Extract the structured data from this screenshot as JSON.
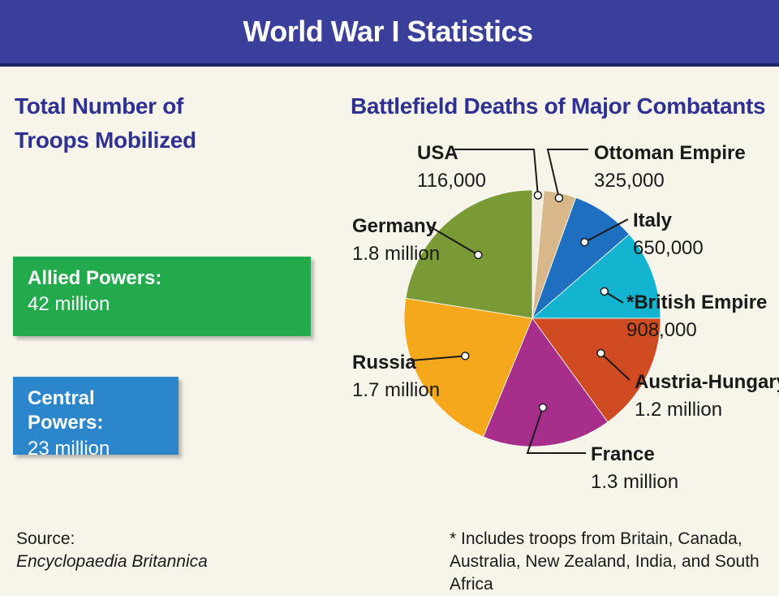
{
  "header": {
    "title": "World War I Statistics"
  },
  "troops": {
    "title": "Total Number of Troops Mobilized",
    "allied": {
      "label": "Allied Powers:",
      "value": "42 million",
      "color": "#22aa4d"
    },
    "central": {
      "label": "Central Powers:",
      "value": "23 million",
      "color": "#2c86cc"
    }
  },
  "chart_data": {
    "type": "pie",
    "title": "Battlefield Deaths of Major Combatants",
    "unit": "deaths",
    "categories": [
      "USA",
      "Ottoman Empire",
      "Italy",
      "*British Empire",
      "Austria-Hungary",
      "France",
      "Russia",
      "Germany"
    ],
    "values": [
      116000,
      325000,
      650000,
      908000,
      1200000,
      1300000,
      1700000,
      1800000
    ],
    "value_labels": [
      "116,000",
      "325,000",
      "650,000",
      "908,000",
      "1.2 million",
      "1.3 million",
      "1.7 million",
      "1.8 million"
    ],
    "colors": [
      "#f2ede0",
      "#d8b88a",
      "#1f6fc0",
      "#13b4cf",
      "#d14b22",
      "#a82e8c",
      "#f5a81c",
      "#7a9a35"
    ],
    "start": "top, clockwise",
    "legend": "callout labels"
  },
  "footer": {
    "source_label": "Source:",
    "source_name": "Encyclopaedia Britannica",
    "footnote": "* Includes troops from Britain, Canada, Australia, New Zealand, India, and South Africa"
  }
}
